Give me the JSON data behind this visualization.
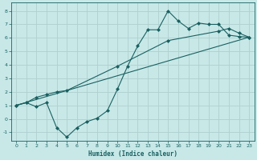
{
  "xlabel": "Humidex (Indice chaleur)",
  "bg_color": "#c8e8e8",
  "grid_color": "#afd0d0",
  "line_color": "#1a6060",
  "xlim": [
    -0.5,
    23.5
  ],
  "ylim": [
    -1.6,
    8.6
  ],
  "xticks": [
    0,
    1,
    2,
    3,
    4,
    5,
    6,
    7,
    8,
    9,
    10,
    11,
    12,
    13,
    14,
    15,
    16,
    17,
    18,
    19,
    20,
    21,
    22,
    23
  ],
  "yticks": [
    -1,
    0,
    1,
    2,
    3,
    4,
    5,
    6,
    7,
    8
  ],
  "curve1_x": [
    0,
    1,
    2,
    3,
    4,
    5,
    6,
    7,
    8,
    9,
    10,
    11,
    12,
    13,
    14,
    15,
    16,
    17,
    18,
    19,
    20,
    21,
    22,
    23
  ],
  "curve1_y": [
    1.0,
    1.2,
    0.9,
    1.2,
    -0.65,
    -1.35,
    -0.65,
    -0.2,
    0.05,
    0.6,
    2.2,
    3.9,
    5.4,
    6.6,
    6.6,
    8.0,
    7.25,
    6.7,
    7.1,
    7.0,
    7.0,
    6.2,
    6.1,
    6.05
  ],
  "curve2_x": [
    0,
    1,
    2,
    3,
    4,
    5,
    10,
    15,
    20,
    21,
    22,
    23
  ],
  "curve2_y": [
    1.0,
    1.2,
    1.6,
    1.8,
    2.0,
    2.1,
    3.9,
    5.8,
    6.5,
    6.7,
    6.35,
    6.05
  ],
  "curve3_x": [
    0,
    23
  ],
  "curve3_y": [
    1.0,
    6.05
  ]
}
